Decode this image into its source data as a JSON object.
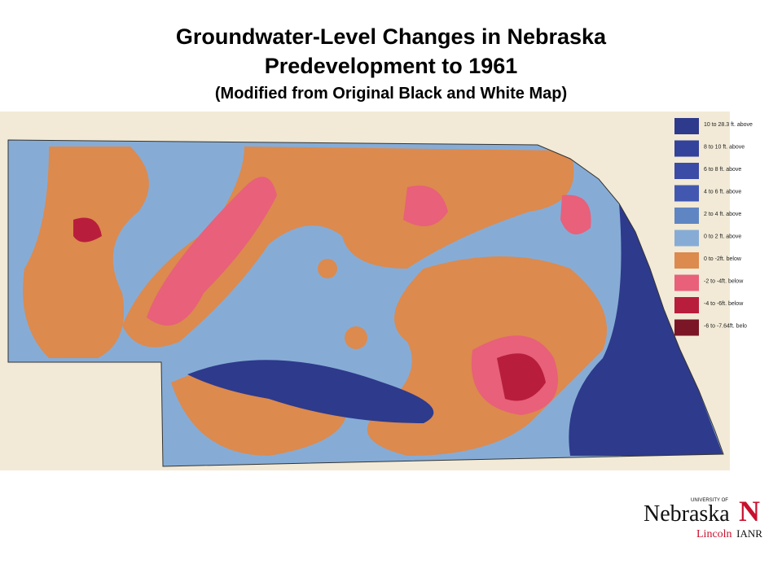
{
  "header": {
    "title_lines": [
      "Groundwater-Level Changes in Nebraska",
      "Predevelopment to 1961",
      "(Modified from Original Black and White Map)"
    ]
  },
  "legend": {
    "items": [
      {
        "label": "10 to 28.3 ft. above",
        "color": "#2e3a8c"
      },
      {
        "label": "8 to 10 ft. above",
        "color": "#33429a"
      },
      {
        "label": "6 to 8 ft. above",
        "color": "#3a4ca6"
      },
      {
        "label": "4 to 6 ft. above",
        "color": "#4258b0"
      },
      {
        "label": "2 to 4 ft. above",
        "color": "#5f86c2"
      },
      {
        "label": "0 to 2 ft. above",
        "color": "#86acd6"
      },
      {
        "label": "0 to -2ft. below",
        "color": "#dc8a4e"
      },
      {
        "label": "-2 to -4ft. below",
        "color": "#e8607a"
      },
      {
        "label": "-4 to -6ft. below",
        "color": "#b81e3c"
      },
      {
        "label": "-6 to -7.64ft. belo",
        "color": "#7a1626"
      }
    ]
  },
  "logo": {
    "small": "UNIVERSITY OF",
    "name": "Nebraska",
    "campus": "Lincoln",
    "mark": "N",
    "unit": "IANR"
  }
}
